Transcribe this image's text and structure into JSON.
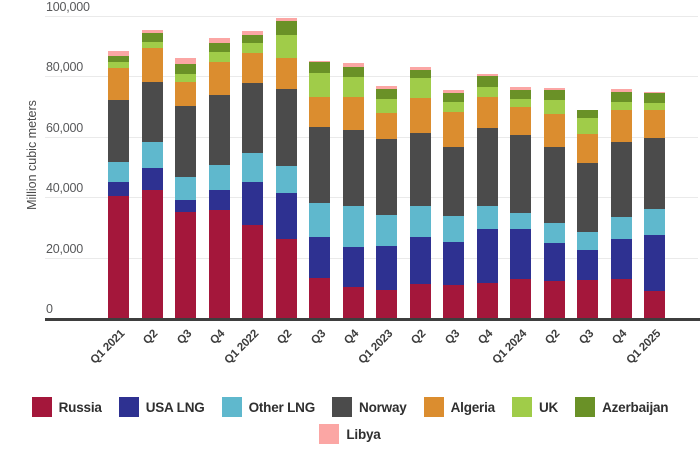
{
  "y_axis": {
    "title": "Million cubic meters",
    "ticks": [
      {
        "label": "0",
        "value": 0
      },
      {
        "label": "20,000",
        "value": 20000
      },
      {
        "label": "40,000",
        "value": 40000
      },
      {
        "label": "60,000",
        "value": 60000
      },
      {
        "label": "80,000",
        "value": 80000
      },
      {
        "label": "100,000",
        "value": 100000
      }
    ]
  },
  "chart_data": {
    "type": "bar",
    "stacked": true,
    "title": "",
    "xlabel": "",
    "ylabel": "Million cubic meters",
    "ylim": [
      0,
      100000
    ],
    "grid": true,
    "legend_position": "bottom",
    "categories": [
      "Q1 2021",
      "Q2",
      "Q3",
      "Q4",
      "Q1 2022",
      "Q2",
      "Q3",
      "Q4",
      "Q1 2023",
      "Q2",
      "Q3",
      "Q4",
      "Q1 2024",
      "Q2",
      "Q3",
      "Q4",
      "Q1 2025"
    ],
    "series": [
      {
        "name": "Russia",
        "color": "#A4173B",
        "values": [
          40400,
          42400,
          35100,
          35700,
          30800,
          26000,
          13200,
          10300,
          9300,
          11300,
          10900,
          11600,
          12900,
          12200,
          12600,
          12900,
          8900
        ]
      },
      {
        "name": "USA LNG",
        "color": "#2E3191",
        "values": [
          4600,
          7300,
          4000,
          6700,
          14200,
          15300,
          13600,
          13200,
          14500,
          15500,
          14300,
          17900,
          16600,
          12600,
          9900,
          13200,
          18600
        ]
      },
      {
        "name": "Other LNG",
        "color": "#5FB8CD",
        "values": [
          6600,
          8600,
          7600,
          8200,
          9600,
          9100,
          11300,
          13600,
          10300,
          10300,
          8600,
          7600,
          5300,
          6600,
          6000,
          7300,
          8600
        ]
      },
      {
        "name": "Norway",
        "color": "#4B4B4B",
        "values": [
          20600,
          19800,
          23500,
          23200,
          23200,
          25300,
          25100,
          25100,
          25100,
          24100,
          22800,
          25800,
          25800,
          25200,
          22800,
          24900,
          23500
        ]
      },
      {
        "name": "Algeria",
        "color": "#DB8D2F",
        "values": [
          10500,
          11400,
          8000,
          10900,
          9900,
          10300,
          10000,
          11000,
          8700,
          11600,
          11600,
          10300,
          9200,
          10900,
          9600,
          10500,
          9200
        ]
      },
      {
        "name": "UK",
        "color": "#A0CC49",
        "values": [
          2000,
          2000,
          2500,
          3300,
          3300,
          7700,
          7900,
          6600,
          4600,
          6600,
          3300,
          3300,
          2700,
          4700,
          5300,
          2700,
          2400
        ]
      },
      {
        "name": "Azerbaijan",
        "color": "#6A9127",
        "values": [
          2100,
          2800,
          3300,
          3000,
          2700,
          4700,
          3600,
          3300,
          3300,
          2700,
          3000,
          3600,
          3000,
          3300,
          2600,
          3300,
          3300
        ]
      },
      {
        "name": "Libya",
        "color": "#FBA6A4",
        "values": [
          1600,
          1000,
          2000,
          1700,
          1300,
          800,
          400,
          1300,
          1000,
          1000,
          1000,
          700,
          1000,
          600,
          200,
          1000,
          300
        ]
      }
    ]
  },
  "legend": {
    "rows": [
      [
        "Russia",
        "USA LNG",
        "Other LNG",
        "Norway",
        "Algeria",
        "UK",
        "Azerbaijan"
      ],
      [
        "Libya"
      ]
    ]
  }
}
